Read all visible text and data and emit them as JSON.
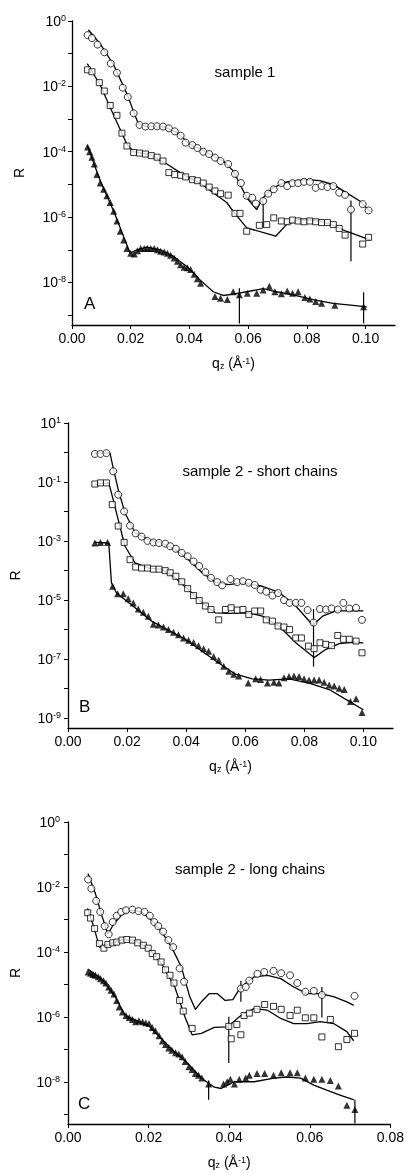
{
  "chart_data": [
    {
      "type": "scatter",
      "title": "sample 1",
      "xlabel": "q$_{z}$ (Å$^{-1}$)",
      "ylabel": "R",
      "annotations": [
        "A"
      ],
      "log": "y",
      "xlim": [
        0,
        0.11
      ],
      "xticks": [
        {
          "value": 0,
          "label": "0.00"
        },
        {
          "value": 0.02,
          "label": "0.02"
        },
        {
          "value": 0.04,
          "label": "0.04"
        },
        {
          "value": 0.06,
          "label": "0.06"
        },
        {
          "value": 0.08,
          "label": "0.08"
        },
        {
          "value": 0.1,
          "label": "0.10"
        }
      ],
      "ylim": [
        5e-10,
        1
      ],
      "yticks": [
        {
          "value": 1,
          "label": "10$^{0}$"
        },
        {
          "value": 0.1,
          "label": null
        },
        {
          "value": 0.01,
          "label": "10$^{-2}$"
        },
        {
          "value": 0.001,
          "label": null
        },
        {
          "value": 0.0001,
          "label": "10$^{-4}$"
        },
        {
          "value": 1e-05,
          "label": null
        },
        {
          "value": 1e-06,
          "label": "10$^{-6}$"
        },
        {
          "value": 1e-07,
          "label": null
        },
        {
          "value": 1e-08,
          "label": "10$^{-8}$"
        },
        {
          "value": 1e-09,
          "label": null
        }
      ],
      "series": [
        {
          "marker": "circle",
          "color": "#000000",
          "x": [
            0.0053,
            0.0068,
            0.0087,
            0.011,
            0.0132,
            0.0153,
            0.0173,
            0.019,
            0.021,
            0.023,
            0.025,
            0.027,
            0.029,
            0.031,
            0.033,
            0.035,
            0.037,
            0.0387,
            0.041,
            0.0427,
            0.0447,
            0.0467,
            0.0487,
            0.0506,
            0.0532,
            0.0555,
            0.0575,
            0.0595,
            0.0614,
            0.0626,
            0.0651,
            0.0668,
            0.0687,
            0.0713,
            0.0733,
            0.0751,
            0.077,
            0.079,
            0.081,
            0.083,
            0.085,
            0.087,
            0.089,
            0.091,
            0.093,
            0.095,
            0.099,
            0.101
          ],
          "values": [
            0.37,
            0.3,
            0.19,
            0.11,
            0.05,
            0.026,
            0.0091,
            0.0047,
            0.0015,
            0.00066,
            0.00059,
            0.0006,
            0.0006,
            0.00059,
            0.00052,
            0.00042,
            0.00031,
            0.00019,
            0.00016,
            0.00013,
            0.0001,
            8.5e-05,
            6.6e-05,
            5.2e-05,
            4.2e-05,
            2.1e-05,
            1.1e-05,
            4.5e-06,
            3.9e-06,
            2.6e-06,
            3.1e-06,
            5.2e-06,
            7.1e-06,
            1.1e-05,
            8.9e-06,
            1.1e-05,
            1.1e-05,
            1.2e-05,
            1.2e-05,
            7.9e-06,
            8.9e-06,
            8.3e-06,
            8.9e-06,
            5.6e-06,
            4.8e-06,
            1.7e-06,
            2.5e-06,
            1.6e-06
          ],
          "errors": [
            null,
            null,
            null,
            null,
            null,
            null,
            null,
            null,
            null,
            null,
            null,
            null,
            null,
            null,
            null,
            null,
            null,
            null,
            null,
            null,
            null,
            null,
            null,
            null,
            null,
            null,
            null,
            null,
            null,
            null,
            [
              4.7e-07,
              3.2e-06
            ],
            null,
            null,
            null,
            null,
            null,
            null,
            null,
            null,
            null,
            null,
            null,
            null,
            null,
            null,
            [
              4.5e-08,
              3.2e-06
            ],
            null,
            null
          ]
        },
        {
          "marker": "square",
          "color": "#000000",
          "x": [
            0.0053,
            0.0068,
            0.0093,
            0.011,
            0.013,
            0.0153,
            0.017,
            0.0187,
            0.021,
            0.023,
            0.025,
            0.027,
            0.029,
            0.031,
            0.033,
            0.035,
            0.037,
            0.0387,
            0.041,
            0.0427,
            0.0447,
            0.0467,
            0.0487,
            0.0506,
            0.0532,
            0.0555,
            0.0572,
            0.0595,
            0.0638,
            0.0663,
            0.0687,
            0.0713,
            0.0733,
            0.0751,
            0.077,
            0.079,
            0.081,
            0.083,
            0.085,
            0.087,
            0.089,
            0.091,
            0.093,
            0.099,
            0.101
          ],
          "values": [
            0.032,
            0.028,
            0.013,
            0.0072,
            0.0026,
            0.0013,
            0.00037,
            0.00015,
            9.5e-05,
            9.1e-05,
            8.5e-05,
            7.6e-05,
            6.8e-05,
            5.2e-05,
            2.3e-05,
            2e-05,
            1.9e-05,
            1.7e-05,
            1.4e-05,
            1.3e-05,
            1.1e-05,
            8.3e-06,
            6.3e-06,
            5.2e-06,
            4.7e-06,
            1.3e-06,
            1.3e-06,
            3.7e-07,
            5.6e-07,
            5.9e-07,
            9.5e-07,
            7.6e-07,
            7.2e-07,
            8.1e-07,
            7.6e-07,
            7.2e-07,
            7.6e-07,
            7.2e-07,
            6.8e-07,
            6.8e-07,
            5.9e-07,
            4.5e-07,
            2.8e-07,
            1.5e-07,
            2.4e-07
          ]
        },
        {
          "marker": "triangle",
          "color": "#000000",
          "x": [
            0.0053,
            0.006,
            0.0068,
            0.0076,
            0.0085,
            0.0096,
            0.0108,
            0.0119,
            0.013,
            0.0142,
            0.0153,
            0.0164,
            0.0176,
            0.0187,
            0.02,
            0.0212,
            0.0223,
            0.0234,
            0.0246,
            0.0257,
            0.0268,
            0.028,
            0.0291,
            0.0302,
            0.0314,
            0.0325,
            0.0336,
            0.0348,
            0.0359,
            0.037,
            0.0382,
            0.0393,
            0.0404,
            0.0416,
            0.0427,
            0.0438,
            0.0487,
            0.0506,
            0.0529,
            0.0549,
            0.057,
            0.0597,
            0.0629,
            0.0651,
            0.0672,
            0.0691,
            0.0713,
            0.0733,
            0.0751,
            0.077,
            0.0793,
            0.081,
            0.083,
            0.085,
            0.0895,
            0.0993
          ],
          "values": [
            0.00014,
            0.0001,
            6.8e-05,
            4.2e-05,
            2e-05,
            1.1e-05,
            7.1e-06,
            4.5e-06,
            2.8e-06,
            1.5e-06,
            7.6e-07,
            3.7e-07,
            2e-07,
            1.1e-07,
            7.9e-08,
            7.4e-08,
            9.3e-08,
            1.1e-07,
            1.1e-07,
            1.1e-07,
            1.1e-07,
            1.1e-07,
            1e-07,
            9.1e-08,
            8.5e-08,
            7.8e-08,
            6.8e-08,
            5.6e-08,
            4.5e-08,
            3.5e-08,
            2.9e-08,
            2.8e-08,
            2.5e-08,
            1.8e-08,
            1.3e-08,
            9.5e-09,
            3.7e-09,
            3.3e-09,
            3e-09,
            5.2e-09,
            4.2e-09,
            4.7e-09,
            4.7e-09,
            5.9e-09,
            7.6e-09,
            5.2e-09,
            4.5e-09,
            5.5e-09,
            4.7e-09,
            5.2e-09,
            3.5e-09,
            3.1e-09,
            2.6e-09,
            2.3e-09,
            2e-09,
            1.8e-09
          ],
          "errors": [
            null,
            null,
            null,
            null,
            null,
            null,
            null,
            null,
            null,
            null,
            null,
            null,
            null,
            null,
            null,
            null,
            null,
            null,
            null,
            null,
            null,
            null,
            null,
            null,
            null,
            null,
            null,
            null,
            null,
            null,
            null,
            null,
            null,
            null,
            null,
            null,
            null,
            null,
            null,
            null,
            [
              5.6e-10,
              6.6e-09
            ],
            null,
            null,
            null,
            null,
            null,
            null,
            null,
            null,
            null,
            null,
            null,
            null,
            null,
            null,
            [
              5.6e-10,
              5e-09
            ]
          ]
        },
        {
          "type": "line",
          "marker": "none",
          "color": "#000000",
          "x": [
            0.0057,
            0.0096,
            0.0142,
            0.0187,
            0.0226,
            0.0255,
            0.0311,
            0.0357,
            0.0402,
            0.0459,
            0.0515,
            0.0549,
            0.0595,
            0.0629,
            0.0651,
            0.0685,
            0.073,
            0.0798,
            0.0844,
            0.0889,
            0.0934,
            0.098,
            0.1014
          ],
          "values": [
            0.52,
            0.2,
            0.045,
            0.0059,
            0.00071,
            0.00059,
            0.00059,
            0.00039,
            0.00017,
            9.5e-05,
            5.2e-05,
            2.6e-05,
            3.9e-06,
            1.7e-06,
            3.9e-06,
            7.9e-06,
            1.2e-05,
            1.4e-05,
            1.3e-05,
            1e-05,
            5.6e-06,
            3.1e-06,
            1.5e-06
          ]
        },
        {
          "type": "line",
          "marker": "none",
          "color": "#000000",
          "x": [
            0.0053,
            0.0096,
            0.0142,
            0.0187,
            0.021,
            0.0266,
            0.0323,
            0.0379,
            0.0436,
            0.0481,
            0.0527,
            0.0549,
            0.0595,
            0.0694,
            0.073,
            0.0776,
            0.0844,
            0.0889,
            0.0934,
            0.098,
            0.1014
          ],
          "values": [
            0.048,
            0.011,
            0.0013,
            0.00017,
            0.0001,
            8.1e-05,
            4.2e-05,
            2e-05,
            1.1e-05,
            5.6e-06,
            2.8e-06,
            1.5e-06,
            4.7e-07,
            2.6e-07,
            5.9e-07,
            8.5e-07,
            7.6e-07,
            5.6e-07,
            3.7e-07,
            2.6e-07,
            2e-07
          ]
        },
        {
          "type": "line",
          "marker": "none",
          "color": "#000000",
          "x": [
            0.0053,
            0.0096,
            0.0142,
            0.0198,
            0.0221,
            0.0255,
            0.03,
            0.0345,
            0.0391,
            0.0436,
            0.0481,
            0.0515,
            0.0549,
            0.0595,
            0.0651,
            0.0696,
            0.0753,
            0.0821,
            0.0889,
            0.0957,
            0.1002
          ],
          "values": [
            0.00015,
            1.3e-05,
            1.5e-06,
            7.9e-08,
            1e-07,
            1.2e-07,
            1e-07,
            6.3e-08,
            3.1e-08,
            1.2e-08,
            5.2e-09,
            4e-09,
            4.4e-09,
            5.2e-09,
            6.5e-09,
            5.2e-09,
            4.2e-09,
            3e-09,
            2.3e-09,
            2e-09,
            1.8e-09
          ]
        }
      ]
    },
    {
      "type": "scatter",
      "title": "sample 2 - short chains",
      "xlabel": "q$_{z}$ (Å$^{-1}$)",
      "ylabel": "R",
      "annotations": [
        "B"
      ],
      "log": "y",
      "xlim": [
        0,
        0.11
      ],
      "xticks": [
        {
          "value": 0,
          "label": "0.00"
        },
        {
          "value": 0.02,
          "label": "0.02"
        },
        {
          "value": 0.04,
          "label": "0.04"
        },
        {
          "value": 0.06,
          "label": "0.06"
        },
        {
          "value": 0.08,
          "label": "0.08"
        },
        {
          "value": 0.1,
          "label": "0.10"
        }
      ],
      "ylim": [
        4.5e-10,
        10
      ],
      "yticks": [
        {
          "value": 10,
          "label": "10$^{1}$"
        },
        {
          "value": 1,
          "label": null
        },
        {
          "value": 0.1,
          "label": "10$^{-1}$"
        },
        {
          "value": 0.01,
          "label": null
        },
        {
          "value": 0.001,
          "label": "10$^{-3}$"
        },
        {
          "value": 0.0001,
          "label": null
        },
        {
          "value": 1e-05,
          "label": "10$^{-5}$"
        },
        {
          "value": 1e-06,
          "label": null
        },
        {
          "value": 1e-07,
          "label": "10$^{-7}$"
        },
        {
          "value": 1e-08,
          "label": null
        },
        {
          "value": 1e-09,
          "label": "10$^{-9}$"
        }
      ],
      "series": [
        {
          "marker": "circle",
          "color": "#000000",
          "x": [
            0.0091,
            0.011,
            0.013,
            0.0153,
            0.017,
            0.019,
            0.021,
            0.0229,
            0.0249,
            0.0269,
            0.0289,
            0.0308,
            0.0329,
            0.0346,
            0.0365,
            0.0385,
            0.0405,
            0.0425,
            0.0444,
            0.0465,
            0.0484,
            0.0505,
            0.0522,
            0.055,
            0.0573,
            0.0592,
            0.0612,
            0.0632,
            0.0652,
            0.0671,
            0.0692,
            0.0711,
            0.0731,
            0.075,
            0.0771,
            0.079,
            0.0811,
            0.0831,
            0.0853,
            0.0873,
            0.0892,
            0.0913,
            0.0932,
            0.0952,
            0.0975,
            0.0995
          ],
          "values": [
            0.89,
            0.89,
            0.95,
            0.23,
            0.037,
            0.01,
            0.0033,
            0.0018,
            0.0014,
            0.001,
            0.00089,
            0.00085,
            0.00081,
            0.00066,
            0.00054,
            0.00039,
            0.0003,
            0.0002,
            0.00014,
            8.7e-05,
            5.6e-05,
            4e-05,
            3.1e-05,
            5.1e-05,
            4e-05,
            4.3e-05,
            3.8e-05,
            3.2e-05,
            2.2e-05,
            1.9e-05,
            1.4e-05,
            1.7e-05,
            9.8e-06,
            7.9e-06,
            7.9e-06,
            7.9e-06,
            4.5e-06,
            1.7e-06,
            4.9e-06,
            4.7e-06,
            5.1e-06,
            4.7e-06,
            7.9e-06,
            5.1e-06,
            5.4e-06,
            2.1e-06
          ],
          "errors": [
            null,
            null,
            null,
            null,
            null,
            null,
            null,
            null,
            null,
            null,
            null,
            null,
            null,
            null,
            null,
            null,
            null,
            null,
            null,
            null,
            null,
            null,
            null,
            null,
            null,
            null,
            null,
            null,
            null,
            null,
            null,
            null,
            null,
            null,
            null,
            null,
            null,
            [
              5.4e-08,
              4.9e-06
            ],
            null,
            null,
            null,
            null,
            null,
            null,
            null,
            null
          ]
        },
        {
          "marker": "square",
          "color": "#000000",
          "x": [
            0.0091,
            0.011,
            0.013,
            0.015,
            0.017,
            0.019,
            0.021,
            0.0229,
            0.0249,
            0.0269,
            0.0289,
            0.0308,
            0.0329,
            0.0346,
            0.0365,
            0.0385,
            0.0405,
            0.0425,
            0.0444,
            0.0465,
            0.0484,
            0.051,
            0.0533,
            0.0552,
            0.0573,
            0.0592,
            0.0612,
            0.0632,
            0.0652,
            0.0671,
            0.0692,
            0.0711,
            0.0731,
            0.075,
            0.0771,
            0.079,
            0.0814,
            0.0833,
            0.0853,
            0.0873,
            0.0892,
            0.0913,
            0.0932,
            0.0952,
            0.0975,
            0.0995
          ],
          "values": [
            0.085,
            0.093,
            0.093,
            0.017,
            0.0032,
            0.00089,
            0.00023,
            0.00013,
            0.00012,
            0.00012,
            0.00011,
            0.00011,
            9.8e-05,
            8.3e-05,
            6.3e-05,
            4.1e-05,
            2.4e-05,
            1.4e-05,
            9.5e-06,
            6.2e-06,
            4.7e-06,
            2.1e-06,
            4.7e-06,
            5.4e-06,
            4.5e-06,
            4.7e-06,
            3.2e-06,
            4.2e-06,
            4.2e-06,
            2.1e-06,
            1.9e-06,
            1.3e-06,
            1.2e-06,
            9.8e-07,
            5.1e-07,
            5.1e-07,
            2.7e-07,
            2.2e-07,
            3.5e-07,
            3.1e-07,
            2.8e-07,
            6.2e-07,
            4.6e-07,
            4.6e-07,
            4e-07,
            1.6e-07
          ]
        },
        {
          "marker": "triangle",
          "color": "#000000",
          "x": [
            0.0091,
            0.011,
            0.0134,
            0.0151,
            0.0168,
            0.0187,
            0.0204,
            0.0221,
            0.0238,
            0.0255,
            0.0272,
            0.0289,
            0.0306,
            0.0323,
            0.034,
            0.0357,
            0.0374,
            0.0391,
            0.0408,
            0.0425,
            0.0442,
            0.0459,
            0.0476,
            0.0493,
            0.051,
            0.0527,
            0.0544,
            0.0561,
            0.0578,
            0.061,
            0.0635,
            0.0652,
            0.0675,
            0.0697,
            0.0714,
            0.0731,
            0.0748,
            0.0765,
            0.0782,
            0.0799,
            0.0816,
            0.0833,
            0.085,
            0.0867,
            0.0884,
            0.0901,
            0.0918,
            0.0935,
            0.0956,
            0.0975,
            0.0995
          ],
          "values": [
            0.00085,
            0.00089,
            0.00089,
            2.9e-05,
            1.6e-05,
            1.6e-05,
            1.1e-05,
            7.9e-06,
            4.9e-06,
            3.8e-06,
            2.8e-06,
            1.5e-06,
            1.4e-06,
            1.2e-06,
            9.8e-07,
            7.9e-07,
            6.6e-07,
            5.1e-07,
            4.3e-07,
            3.6e-07,
            2.8e-07,
            2.2e-07,
            1.8e-07,
            1.2e-07,
            8.9e-08,
            5.6e-08,
            3.8e-08,
            3e-08,
            2.6e-08,
            1.5e-08,
            2.1e-08,
            2e-08,
            1.5e-08,
            1.6e-08,
            1.5e-08,
            2.3e-08,
            2.5e-08,
            2.6e-08,
            2.5e-08,
            2.1e-08,
            1.9e-08,
            1.9e-08,
            1.9e-08,
            1.6e-08,
            1.3e-08,
            1.2e-08,
            1e-08,
            9.1e-09,
            3.6e-09,
            4.4e-09,
            1.5e-09
          ]
        },
        {
          "type": "line",
          "marker": "none",
          "color": "#000000",
          "x": [
            0.0091,
            0.0142,
            0.0153,
            0.017,
            0.0193,
            0.0227,
            0.0272,
            0.0317,
            0.0363,
            0.0408,
            0.0454,
            0.0499,
            0.0544,
            0.059,
            0.0658,
            0.0714,
            0.0771,
            0.0828,
            0.0862,
            0.0907,
            0.0952,
            0.0998
          ],
          "values": [
            0.95,
            0.95,
            0.3,
            0.055,
            0.0089,
            0.0019,
            0.0011,
            0.00085,
            0.00051,
            0.00023,
            8.3e-05,
            4e-05,
            3.3e-05,
            3.8e-05,
            2.9e-05,
            1.8e-05,
            6.2e-06,
            1.4e-06,
            2.8e-06,
            4.2e-06,
            4.2e-06,
            4.2e-06
          ]
        },
        {
          "type": "line",
          "marker": "none",
          "color": "#000000",
          "x": [
            0.0091,
            0.0138,
            0.0153,
            0.017,
            0.0193,
            0.0227,
            0.0272,
            0.0317,
            0.0363,
            0.0408,
            0.0454,
            0.0499,
            0.0544,
            0.0612,
            0.0658,
            0.0714,
            0.0771,
            0.0833,
            0.0873,
            0.0918,
            0.0964,
            0.0998
          ],
          "values": [
            0.085,
            0.093,
            0.025,
            0.0052,
            0.00066,
            0.00018,
            0.00012,
            0.00011,
            5.6e-05,
            2.2e-05,
            7.9e-06,
            3.6e-06,
            3.5e-06,
            3.6e-06,
            2.8e-06,
            1.3e-06,
            3.5e-07,
            1.1e-07,
            2.1e-07,
            3.3e-07,
            3.6e-07,
            3.5e-07
          ]
        },
        {
          "type": "line",
          "marker": "none",
          "color": "#000000",
          "x": [
            0.0091,
            0.0138,
            0.0147,
            0.0164,
            0.0227,
            0.0283,
            0.034,
            0.0397,
            0.0454,
            0.051,
            0.0567,
            0.0624,
            0.068,
            0.0748,
            0.0816,
            0.0884,
            0.0952,
            0.0998
          ],
          "values": [
            0.00089,
            0.00085,
            3.8e-05,
            1.7e-05,
            5.4e-06,
            1.9e-06,
            9.3e-07,
            4.6e-07,
            1.8e-07,
            7.2e-08,
            3e-08,
            2.1e-08,
            1.9e-08,
            2.1e-08,
            1.5e-08,
            9.1e-09,
            3.6e-09,
            1.9e-09
          ]
        }
      ]
    },
    {
      "type": "scatter",
      "title": "sample 2 - long chains",
      "xlabel": "q$_{z}$ (Å$^{-1}$)",
      "ylabel": "R",
      "annotations": [
        "C"
      ],
      "log": "y",
      "xlim": [
        0,
        0.08
      ],
      "xticks": [
        {
          "value": 0,
          "label": "0.00"
        },
        {
          "value": 0.02,
          "label": "0.02"
        },
        {
          "value": 0.04,
          "label": "0.04"
        },
        {
          "value": 0.06,
          "label": "0.06"
        },
        {
          "value": 0.08,
          "label": "0.08"
        }
      ],
      "ylim": [
        5e-10,
        1
      ],
      "yticks": [
        {
          "value": 1,
          "label": "10$^{0}$"
        },
        {
          "value": 0.1,
          "label": null
        },
        {
          "value": 0.01,
          "label": "10$^{-2}$"
        },
        {
          "value": 0.001,
          "label": null
        },
        {
          "value": 0.0001,
          "label": "10$^{-4}$"
        },
        {
          "value": 1e-05,
          "label": null
        },
        {
          "value": 1e-06,
          "label": "10$^{-6}$"
        },
        {
          "value": 1e-07,
          "label": null
        },
        {
          "value": 1e-08,
          "label": "10$^{-8}$"
        },
        {
          "value": 1e-09,
          "label": null
        }
      ],
      "series": [
        {
          "marker": "circle",
          "color": "#000000",
          "x": [
            0.005,
            0.0058,
            0.007,
            0.008,
            0.0091,
            0.0101,
            0.0111,
            0.0121,
            0.0132,
            0.0144,
            0.016,
            0.0175,
            0.019,
            0.0203,
            0.0214,
            0.0224,
            0.0236,
            0.0249,
            0.0261,
            0.0277,
            0.0288,
            0.0429,
            0.0441,
            0.045,
            0.047,
            0.0487,
            0.051,
            0.0529,
            0.0551,
            0.0569,
            0.0589,
            0.061,
            0.063,
            0.0711
          ],
          "values": [
            0.017,
            0.0089,
            0.0037,
            0.0017,
            0.00062,
            0.00035,
            0.00083,
            0.0013,
            0.0017,
            0.0019,
            0.002,
            0.0018,
            0.0017,
            0.0013,
            0.00083,
            0.00062,
            0.00042,
            0.00023,
            0.00014,
            3.1e-05,
            1.2e-05,
            7.4e-06,
            8.3e-06,
            1.3e-05,
            2.1e-05,
            2.4e-05,
            2.6e-05,
            2.2e-05,
            1.9e-05,
            1.1e-05,
            5.9e-06,
            6.3e-06,
            4.7e-06,
            4.4e-06
          ],
          "errors": [
            null,
            null,
            null,
            null,
            null,
            null,
            null,
            null,
            null,
            null,
            null,
            null,
            null,
            null,
            null,
            null,
            null,
            null,
            null,
            null,
            null,
            [
              2.9e-06,
              1.3e-05
            ],
            null,
            null,
            null,
            null,
            null,
            null,
            null,
            null,
            null,
            null,
            [
              9.5e-07,
              8.3e-06
            ],
            null
          ]
        },
        {
          "marker": "square",
          "color": "#000000",
          "x": [
            0.0049,
            0.0056,
            0.0066,
            0.0078,
            0.0089,
            0.0099,
            0.0111,
            0.0121,
            0.0134,
            0.0146,
            0.016,
            0.0173,
            0.0187,
            0.0199,
            0.0209,
            0.022,
            0.0231,
            0.0242,
            0.0253,
            0.0263,
            0.0277,
            0.0286,
            0.0308,
            0.0399,
            0.0405,
            0.0419,
            0.0429,
            0.0437,
            0.045,
            0.0469,
            0.0488,
            0.051,
            0.0529,
            0.0551,
            0.0569,
            0.0589,
            0.061,
            0.063,
            0.0651,
            0.0671,
            0.0692,
            0.0711
          ],
          "values": [
            0.0016,
            0.0011,
            0.00052,
            0.00018,
            0.00013,
            0.00017,
            0.00019,
            0.0002,
            0.00023,
            0.00024,
            0.00023,
            0.00019,
            0.00016,
            0.00013,
            8.9e-05,
            7.1e-05,
            4.9e-05,
            2.8e-05,
            1.9e-05,
            1.1e-05,
            3.2e-06,
            1.5e-06,
            4.4e-07,
            5.1e-07,
            2.1e-07,
            5.8e-07,
            2.8e-07,
            1.1e-06,
            1.3e-06,
            1.7e-06,
            2.4e-06,
            2.1e-06,
            1.7e-06,
            1.1e-06,
            1.6e-06,
            9.3e-07,
            9.3e-07,
            2.4e-07,
            8.3e-07,
            1.2e-07,
            2e-07,
            3.1e-07
          ],
          "errors": [
            null,
            null,
            null,
            null,
            null,
            null,
            null,
            null,
            null,
            null,
            null,
            null,
            null,
            null,
            null,
            null,
            null,
            null,
            null,
            null,
            null,
            null,
            null,
            [
              3.8e-08,
              1e-06
            ],
            null,
            null,
            null,
            null,
            null,
            null,
            null,
            null,
            null,
            null,
            null,
            null,
            null,
            null,
            null,
            null,
            null,
            null
          ]
        },
        {
          "marker": "triangle",
          "color": "#000000",
          "x": [
            0.005,
            0.0056,
            0.0062,
            0.0068,
            0.0075,
            0.0081,
            0.0088,
            0.0094,
            0.0101,
            0.0107,
            0.0114,
            0.0121,
            0.0127,
            0.0135,
            0.0144,
            0.0152,
            0.016,
            0.0168,
            0.0176,
            0.0185,
            0.0193,
            0.0201,
            0.0209,
            0.0217,
            0.0226,
            0.0234,
            0.0242,
            0.025,
            0.0258,
            0.0267,
            0.0275,
            0.0283,
            0.0291,
            0.03,
            0.0308,
            0.0316,
            0.0324,
            0.0332,
            0.0349,
            0.0386,
            0.0395,
            0.0403,
            0.0413,
            0.0425,
            0.0441,
            0.045,
            0.0469,
            0.0488,
            0.051,
            0.0529,
            0.0551,
            0.0569,
            0.0589,
            0.061,
            0.063,
            0.0651,
            0.0671,
            0.0692,
            0.0712
          ],
          "values": [
            2.4e-05,
            2.2e-05,
            2e-05,
            1.9e-05,
            1.7e-05,
            1.5e-05,
            1.3e-05,
            1.1e-05,
            8.3e-06,
            6.6e-06,
            5e-06,
            3.2e-06,
            2e-06,
            1.4e-06,
            1.1e-06,
            9.5e-07,
            8.3e-07,
            7.1e-07,
            7.6e-07,
            7.1e-07,
            6.6e-07,
            6.2e-07,
            4.7e-07,
            3.7e-07,
            2.6e-07,
            1.8e-07,
            1.4e-07,
            1.1e-07,
            9.3e-08,
            7.8e-08,
            7.1e-08,
            5.9e-08,
            4.2e-08,
            2.9e-08,
            2.4e-08,
            1.8e-08,
            1.6e-08,
            1.3e-08,
            8.5e-09,
            8.5e-09,
            1e-08,
            1.2e-08,
            8.5e-09,
            1.2e-08,
            1.3e-08,
            1.6e-08,
            1.8e-08,
            1.8e-08,
            1.6e-08,
            1.9e-08,
            1.9e-08,
            1.9e-08,
            1.3e-08,
            1.2e-08,
            1.2e-08,
            1.1e-08,
            7.4e-09,
            1.9e-09,
            1.4e-09
          ],
          "errors": [
            null,
            null,
            null,
            null,
            null,
            null,
            null,
            null,
            null,
            null,
            null,
            null,
            null,
            null,
            null,
            null,
            null,
            null,
            null,
            null,
            null,
            null,
            null,
            null,
            null,
            null,
            null,
            null,
            null,
            null,
            null,
            null,
            null,
            null,
            null,
            null,
            null,
            null,
            [
              2.8e-09,
              1.1e-08
            ],
            null,
            null,
            null,
            null,
            null,
            null,
            null,
            null,
            null,
            null,
            null,
            null,
            null,
            null,
            null,
            null,
            null,
            null,
            null,
            [
              5.2e-10,
              2.8e-09
            ]
          ]
        },
        {
          "type": "line",
          "marker": "none",
          "color": "#000000",
          "x": [
            0.005,
            0.0068,
            0.0085,
            0.0099,
            0.0113,
            0.0134,
            0.0158,
            0.0183,
            0.0208,
            0.0232,
            0.0257,
            0.0281,
            0.0302,
            0.0316,
            0.0331,
            0.0351,
            0.037,
            0.039,
            0.0409,
            0.0429,
            0.0462,
            0.0495,
            0.0528,
            0.056,
            0.0593,
            0.0626,
            0.0659,
            0.0692,
            0.0708
          ],
          "values": [
            0.025,
            0.0062,
            0.0012,
            0.00035,
            0.00071,
            0.0014,
            0.0019,
            0.0017,
            0.00093,
            0.00042,
            0.00014,
            3.5e-05,
            4.2e-06,
            1.7e-06,
            2.9e-06,
            5.2e-06,
            5.2e-06,
            3.2e-06,
            3.4e-06,
            8.3e-06,
            1.7e-05,
            1.9e-05,
            1.5e-05,
            8.3e-06,
            5.2e-06,
            5.2e-06,
            4.2e-06,
            2.9e-06,
            2.3e-06
          ]
        },
        {
          "type": "line",
          "marker": "none",
          "color": "#000000",
          "x": [
            0.0049,
            0.0064,
            0.0078,
            0.0101,
            0.0134,
            0.0167,
            0.0199,
            0.0232,
            0.0265,
            0.029,
            0.0308,
            0.0331,
            0.0363,
            0.0396,
            0.0429,
            0.0462,
            0.0495,
            0.0528,
            0.056,
            0.0593,
            0.0626,
            0.0659,
            0.0692,
            0.0708
          ],
          "values": [
            0.0021,
            0.00059,
            0.00014,
            0.00017,
            0.00024,
            0.00022,
            0.00013,
            4.4e-05,
            8.3e-06,
            1e-06,
            2.8e-07,
            3.1e-07,
            4.7e-07,
            4.9e-07,
            1.1e-06,
            1.8e-06,
            1.6e-06,
            8.9e-07,
            6.2e-07,
            6.2e-07,
            7.1e-07,
            6.2e-07,
            3.5e-07,
            1.9e-07
          ]
        },
        {
          "type": "line",
          "marker": "none",
          "color": "#000000",
          "x": [
            0.005,
            0.0085,
            0.0117,
            0.0142,
            0.0167,
            0.0199,
            0.0232,
            0.0265,
            0.0298,
            0.0331,
            0.0363,
            0.038,
            0.0413,
            0.0462,
            0.0511,
            0.0544,
            0.0577,
            0.061,
            0.0642,
            0.0675,
            0.0708
          ],
          "values": [
            2.9e-05,
            1.4e-05,
            4.2e-06,
            1.1e-06,
            7.9e-07,
            5.5e-07,
            2.1e-07,
            8.3e-08,
            3.6e-08,
            1.3e-08,
            6.8e-09,
            6.2e-09,
            1e-08,
            1e-08,
            1.3e-08,
            1.4e-08,
            1.3e-08,
            7.9e-09,
            5.5e-09,
            3.9e-09,
            2.8e-09
          ]
        }
      ]
    }
  ]
}
